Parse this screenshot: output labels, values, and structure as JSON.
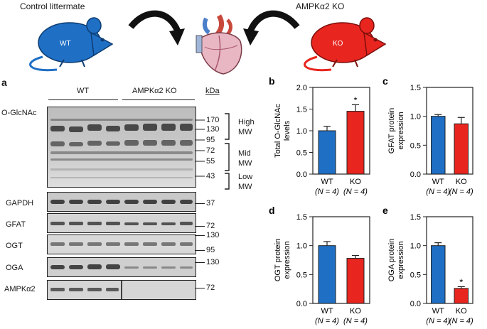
{
  "header": {
    "control_label": "Control littermate",
    "ko_label": "AMPKα2 KO",
    "mouse_wt_text": "WT",
    "mouse_ko_text": "KO",
    "colors": {
      "wt_blue": "#1f6fc5",
      "ko_red": "#e8251f"
    }
  },
  "panel_a": {
    "letter": "a",
    "group_wt": "WT",
    "group_ko": "AMPKα2 KO",
    "kda_label": "kDa",
    "blots": [
      {
        "label": "O-GlcNAc",
        "markers": [
          "170",
          "130",
          "95",
          "72",
          "55",
          "43"
        ]
      },
      {
        "label": "GAPDH",
        "markers": [
          "37"
        ]
      },
      {
        "label": "GFAT",
        "markers": [
          "72"
        ]
      },
      {
        "label": "OGT",
        "markers": [
          "130",
          "95"
        ]
      },
      {
        "label": "OGA",
        "markers": [
          "130"
        ]
      },
      {
        "label": "AMPKα2",
        "markers": [
          "72"
        ]
      }
    ],
    "mw_groups": [
      {
        "line1": "High",
        "line2": "MW"
      },
      {
        "line1": "Mid",
        "line2": "MW"
      },
      {
        "line1": "Low",
        "line2": "MW"
      }
    ]
  },
  "chart_data": [
    {
      "panel": "b",
      "type": "bar",
      "ylabel": "Total O-GlcNAc levels",
      "categories": [
        "WT",
        "KO"
      ],
      "n_labels": [
        "(N = 4)",
        "(N = 4)"
      ],
      "values": [
        1.0,
        1.45
      ],
      "errors": [
        0.1,
        0.15
      ],
      "significance": [
        "",
        "*"
      ],
      "ylim": [
        0,
        2.0
      ],
      "yticks": [
        "0.0",
        "0.5",
        "1.0",
        "1.5",
        "2.0"
      ],
      "colors": [
        "#1f6fc5",
        "#e8251f"
      ]
    },
    {
      "panel": "c",
      "type": "bar",
      "ylabel": "GFAT protein expression",
      "categories": [
        "WT",
        "KO"
      ],
      "n_labels": [
        "(N = 4)",
        "(N = 4)"
      ],
      "values": [
        1.0,
        0.87
      ],
      "errors": [
        0.03,
        0.11
      ],
      "significance": [
        "",
        ""
      ],
      "ylim": [
        0,
        1.5
      ],
      "yticks": [
        "0.0",
        "0.5",
        "1.0",
        "1.5"
      ],
      "colors": [
        "#1f6fc5",
        "#e8251f"
      ]
    },
    {
      "panel": "d",
      "type": "bar",
      "ylabel": "OGT protein expression",
      "categories": [
        "WT",
        "KO"
      ],
      "n_labels": [
        "(N = 4)",
        "(N = 4)"
      ],
      "values": [
        1.0,
        0.78
      ],
      "errors": [
        0.07,
        0.05
      ],
      "significance": [
        "",
        ""
      ],
      "ylim": [
        0,
        1.5
      ],
      "yticks": [
        "0.0",
        "0.5",
        "1.0",
        "1.5"
      ],
      "colors": [
        "#1f6fc5",
        "#e8251f"
      ]
    },
    {
      "panel": "e",
      "type": "bar",
      "ylabel": "OGA protein expression",
      "categories": [
        "WT",
        "KO"
      ],
      "n_labels": [
        "(N = 4)",
        "(N = 4)"
      ],
      "values": [
        1.0,
        0.26
      ],
      "errors": [
        0.05,
        0.03
      ],
      "significance": [
        "",
        "*"
      ],
      "ylim": [
        0,
        1.5
      ],
      "yticks": [
        "0.0",
        "0.5",
        "1.0",
        "1.5"
      ],
      "colors": [
        "#1f6fc5",
        "#e8251f"
      ]
    }
  ]
}
